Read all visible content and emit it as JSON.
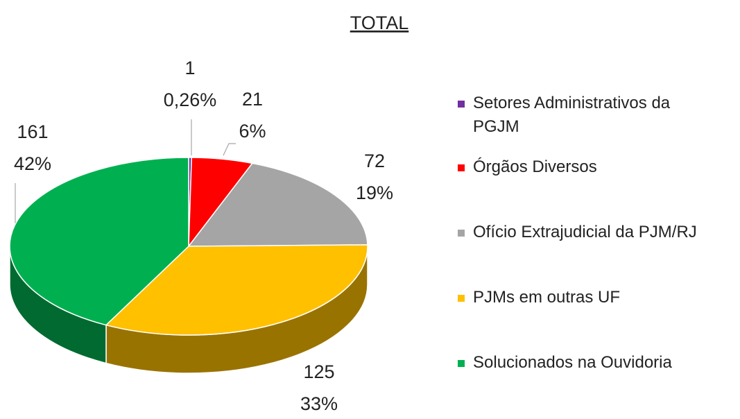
{
  "chart_data": {
    "type": "pie",
    "title": "TOTAL",
    "categories": [
      "Setores Administrativos da PGJM",
      "Órgãos Diversos",
      "Ofício Extrajudicial da PJM/RJ",
      "PJMs em outras UF",
      "Solucionados na Ouvidoria"
    ],
    "values": [
      1,
      21,
      72,
      125,
      161
    ],
    "percent_labels": [
      "0,26%",
      "6%",
      "19%",
      "33%",
      "42%"
    ],
    "colors": [
      "#7030a0",
      "#ff0000",
      "#a5a5a5",
      "#ffc000",
      "#00b050"
    ],
    "legend": "right"
  }
}
